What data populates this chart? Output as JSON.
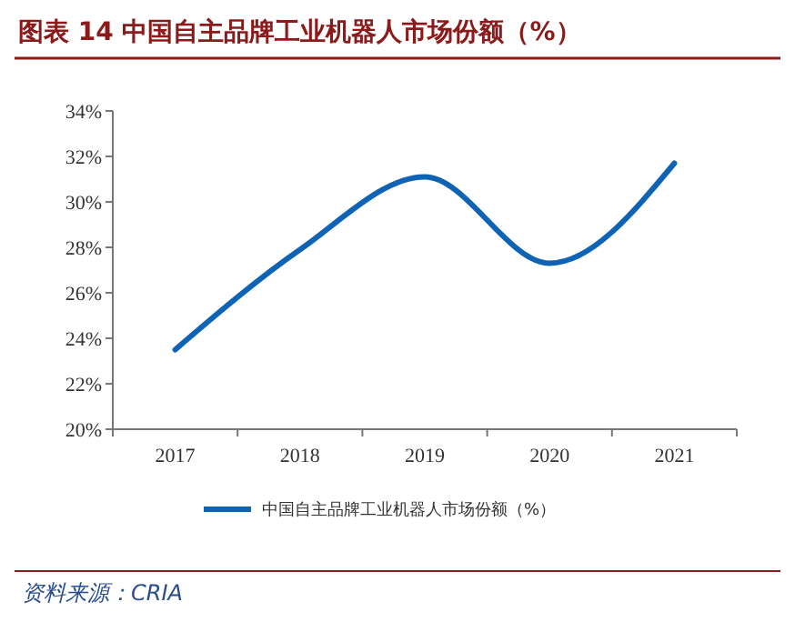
{
  "chart_data": {
    "type": "line",
    "title": "图表 14    中国自主品牌工业机器人市场份额（%）",
    "categories": [
      "2017",
      "2018",
      "2019",
      "2020",
      "2021"
    ],
    "series": [
      {
        "name": "中国自主品牌工业机器人市场份额（%）",
        "color": "#0f63b5",
        "values": [
          23.5,
          27.9,
          31.1,
          27.3,
          31.7
        ]
      }
    ],
    "ylim": [
      20,
      34
    ],
    "yticks": [
      {
        "value": 20,
        "label": "20%"
      },
      {
        "value": 22,
        "label": "22%"
      },
      {
        "value": 24,
        "label": "24%"
      },
      {
        "value": 26,
        "label": "26%"
      },
      {
        "value": 28,
        "label": "28%"
      },
      {
        "value": 30,
        "label": "30%"
      },
      {
        "value": 32,
        "label": "32%"
      },
      {
        "value": 34,
        "label": "34%"
      }
    ],
    "grid": false,
    "legend": "bottom",
    "marker": "none",
    "line_style": "solid",
    "annotations": [
      "资料来源：CRIA"
    ]
  }
}
